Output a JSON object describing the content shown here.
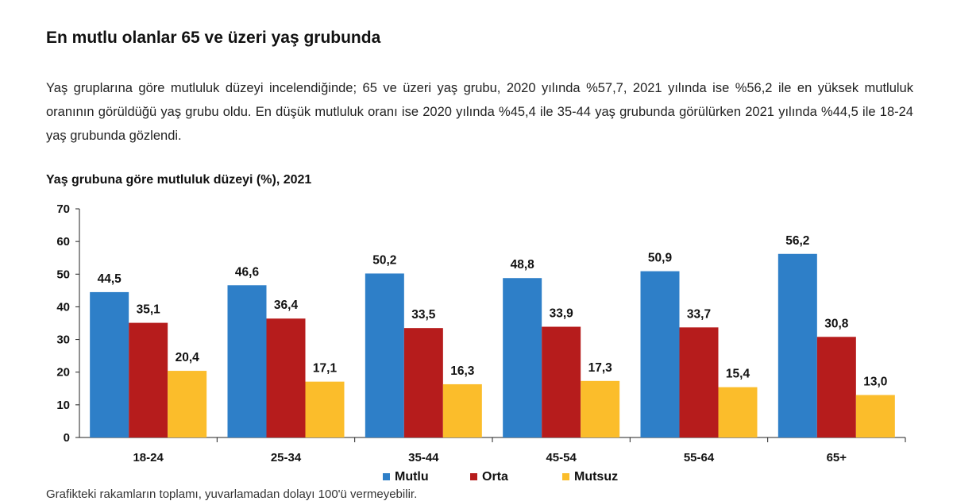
{
  "heading": "En mutlu olanlar 65 ve üzeri yaş grubunda",
  "paragraph": "Yaş gruplarına göre mutluluk düzeyi incelendiğinde; 65 ve üzeri yaş grubu, 2020 yılında %57,7, 2021 yılında ise %56,2 ile en yüksek mutluluk oranının görüldüğü yaş grubu oldu. En düşük mutluluk oranı ise 2020 yılında %45,4 ile 35-44 yaş grubunda görülürken 2021 yılında %44,5 ile 18-24 yaş grubunda gözlendi.",
  "footnote": "Grafikteki rakamların toplamı, yuvarlamadan dolayı 100'ü vermeyebilir.",
  "chart_data": {
    "type": "bar",
    "title": "Yaş grubuna göre mutluluk düzeyi (%), 2021",
    "categories": [
      "18-24",
      "25-34",
      "35-44",
      "45-54",
      "55-64",
      "65+"
    ],
    "series": [
      {
        "name": "Mutlu",
        "color": "#2e7fc8",
        "values": [
          44.5,
          46.6,
          50.2,
          48.8,
          50.9,
          56.2
        ],
        "labels": [
          "44,5",
          "46,6",
          "50,2",
          "48,8",
          "50,9",
          "56,2"
        ]
      },
      {
        "name": "Orta",
        "color": "#b61c1c",
        "values": [
          35.1,
          36.4,
          33.5,
          33.9,
          33.7,
          30.8
        ],
        "labels": [
          "35,1",
          "36,4",
          "33,5",
          "33,9",
          "33,7",
          "30,8"
        ]
      },
      {
        "name": "Mutsuz",
        "color": "#fbbd2b",
        "values": [
          20.4,
          17.1,
          16.3,
          17.3,
          15.4,
          13.0
        ],
        "labels": [
          "20,4",
          "17,1",
          "16,3",
          "17,3",
          "15,4",
          "13,0"
        ]
      }
    ],
    "ylim": [
      0,
      70
    ],
    "yticks": [
      "0",
      "10",
      "20",
      "30",
      "40",
      "50",
      "60",
      "70"
    ],
    "legend_position": "bottom",
    "grid": false
  }
}
